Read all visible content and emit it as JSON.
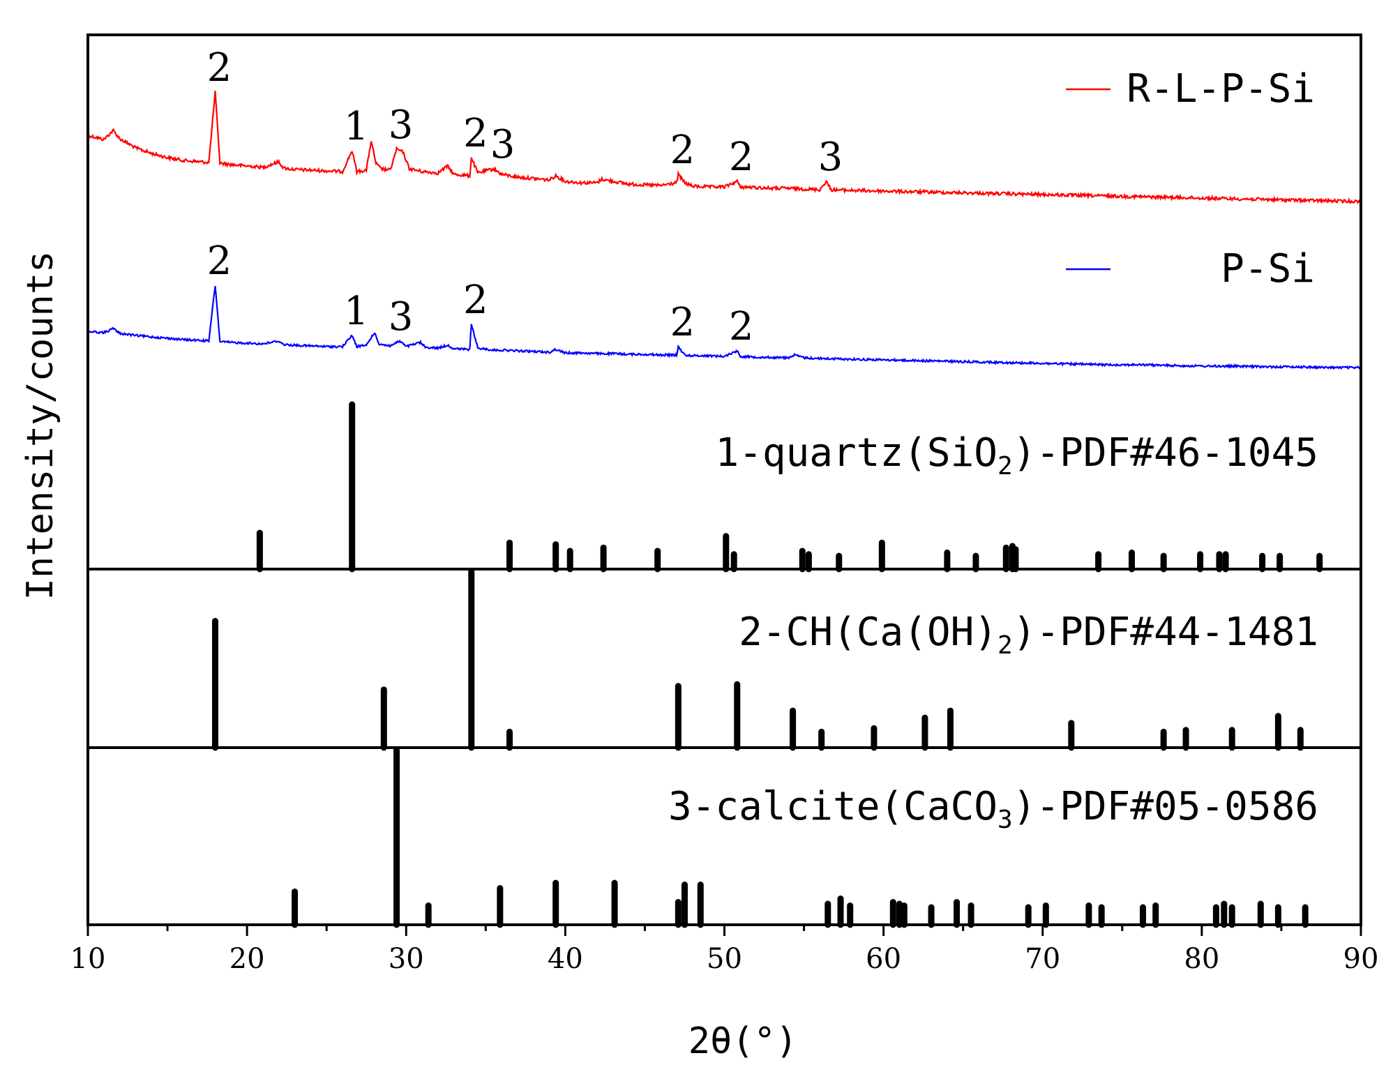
{
  "chart_data": {
    "type": "line",
    "xlabel": "2θ(°)",
    "ylabel": "Intensity/counts",
    "xlim": [
      10,
      90
    ],
    "xticks": [
      10,
      20,
      30,
      40,
      50,
      60,
      70,
      80,
      90
    ],
    "grid": false,
    "legend_position": "top-right",
    "series": [
      {
        "name": "R-L-P-Si",
        "color": "#ff0000",
        "points": [
          [
            10,
            118
          ],
          [
            11,
            112
          ],
          [
            11.6,
            125
          ],
          [
            12,
            113
          ],
          [
            13,
            100
          ],
          [
            14,
            92
          ],
          [
            15,
            86
          ],
          [
            16,
            82
          ],
          [
            17,
            80
          ],
          [
            17.6,
            79
          ],
          [
            18,
            180
          ],
          [
            18.3,
            78
          ],
          [
            19,
            76
          ],
          [
            20,
            74
          ],
          [
            21,
            72
          ],
          [
            22,
            80
          ],
          [
            22.3,
            71
          ],
          [
            23,
            69
          ],
          [
            24,
            68
          ],
          [
            25,
            67
          ],
          [
            26,
            66
          ],
          [
            26.6,
            96
          ],
          [
            26.9,
            66
          ],
          [
            27.5,
            68
          ],
          [
            27.8,
            110
          ],
          [
            28.1,
            78
          ],
          [
            28.4,
            70
          ],
          [
            29,
            68
          ],
          [
            29.4,
            98
          ],
          [
            29.8,
            94
          ],
          [
            30.2,
            70
          ],
          [
            31,
            66
          ],
          [
            32,
            64
          ],
          [
            32.6,
            74
          ],
          [
            33,
            62
          ],
          [
            34,
            60
          ],
          [
            34.1,
            86
          ],
          [
            34.5,
            64
          ],
          [
            35.5,
            70
          ],
          [
            36,
            62
          ],
          [
            37,
            58
          ],
          [
            38,
            56
          ],
          [
            39,
            54
          ],
          [
            39.4,
            60
          ],
          [
            40,
            52
          ],
          [
            41,
            50
          ],
          [
            42,
            50
          ],
          [
            42.3,
            55
          ],
          [
            43,
            52
          ],
          [
            44,
            48
          ],
          [
            45,
            47
          ],
          [
            46,
            46
          ],
          [
            47,
            50
          ],
          [
            47.1,
            62
          ],
          [
            47.5,
            50
          ],
          [
            48,
            45
          ],
          [
            49,
            44
          ],
          [
            50,
            44
          ],
          [
            50.8,
            52
          ],
          [
            51,
            44
          ],
          [
            52,
            43
          ],
          [
            53,
            42
          ],
          [
            54,
            42
          ],
          [
            55,
            41
          ],
          [
            56,
            40
          ],
          [
            56.4,
            52
          ],
          [
            56.7,
            40
          ],
          [
            58,
            39
          ],
          [
            60,
            38
          ],
          [
            62,
            37
          ],
          [
            64,
            36
          ],
          [
            66,
            35
          ],
          [
            68,
            34
          ],
          [
            70,
            33
          ],
          [
            72,
            32
          ],
          [
            74,
            31
          ],
          [
            76,
            30
          ],
          [
            78,
            29
          ],
          [
            80,
            28
          ],
          [
            82,
            27
          ],
          [
            84,
            26
          ],
          [
            86,
            25
          ],
          [
            88,
            24
          ],
          [
            90,
            23
          ]
        ],
        "peak_labels": [
          {
            "x": 18,
            "label": "2"
          },
          {
            "x": 26.6,
            "label": "1"
          },
          {
            "x": 29.4,
            "label": "3"
          },
          {
            "x": 34.1,
            "label": "2"
          },
          {
            "x": 35.8,
            "label": "3"
          },
          {
            "x": 47.1,
            "label": "2"
          },
          {
            "x": 50.8,
            "label": "2"
          },
          {
            "x": 56.4,
            "label": "3"
          }
        ]
      },
      {
        "name": "P-Si",
        "color": "#0000ff",
        "points": [
          [
            10,
            62
          ],
          [
            11,
            60
          ],
          [
            11.6,
            66
          ],
          [
            12,
            59
          ],
          [
            13,
            56
          ],
          [
            14,
            54
          ],
          [
            15,
            52
          ],
          [
            16,
            50
          ],
          [
            17,
            49
          ],
          [
            17.6,
            48
          ],
          [
            18,
            128
          ],
          [
            18.3,
            47
          ],
          [
            19,
            46
          ],
          [
            20,
            45
          ],
          [
            21,
            44
          ],
          [
            22,
            48
          ],
          [
            22.3,
            43
          ],
          [
            23,
            42
          ],
          [
            24,
            41
          ],
          [
            25,
            40
          ],
          [
            26,
            40
          ],
          [
            26.6,
            56
          ],
          [
            26.9,
            40
          ],
          [
            27.5,
            42
          ],
          [
            28,
            60
          ],
          [
            28.3,
            44
          ],
          [
            29,
            41
          ],
          [
            29.6,
            48
          ],
          [
            30,
            40
          ],
          [
            30.9,
            46
          ],
          [
            31.2,
            39
          ],
          [
            32,
            38
          ],
          [
            32.6,
            42
          ],
          [
            33,
            37
          ],
          [
            34,
            36
          ],
          [
            34.1,
            72
          ],
          [
            34.5,
            38
          ],
          [
            35.5,
            35
          ],
          [
            36,
            35
          ],
          [
            37,
            34
          ],
          [
            38,
            33
          ],
          [
            39,
            32
          ],
          [
            39.4,
            36
          ],
          [
            40,
            31
          ],
          [
            41,
            31
          ],
          [
            42,
            30
          ],
          [
            43,
            30
          ],
          [
            44,
            29
          ],
          [
            45,
            29
          ],
          [
            46,
            28
          ],
          [
            47,
            28
          ],
          [
            47.1,
            40
          ],
          [
            47.5,
            28
          ],
          [
            48,
            27
          ],
          [
            49,
            27
          ],
          [
            50,
            26
          ],
          [
            50.8,
            34
          ],
          [
            51,
            26
          ],
          [
            52,
            25
          ],
          [
            54,
            24
          ],
          [
            54.4,
            28
          ],
          [
            55,
            24
          ],
          [
            56,
            23
          ],
          [
            58,
            22
          ],
          [
            60,
            21
          ],
          [
            62,
            20
          ],
          [
            64,
            19
          ],
          [
            66,
            18
          ],
          [
            68,
            17
          ],
          [
            70,
            16
          ],
          [
            72,
            15
          ],
          [
            74,
            14
          ],
          [
            76,
            14
          ],
          [
            78,
            13
          ],
          [
            80,
            12
          ],
          [
            82,
            12
          ],
          [
            84,
            11
          ],
          [
            86,
            11
          ],
          [
            88,
            10
          ],
          [
            90,
            10
          ]
        ],
        "peak_labels": [
          {
            "x": 18,
            "label": "2"
          },
          {
            "x": 26.6,
            "label": "1"
          },
          {
            "x": 29.4,
            "label": "3"
          },
          {
            "x": 34.1,
            "label": "2"
          },
          {
            "x": 47.1,
            "label": "2"
          },
          {
            "x": 50.8,
            "label": "2"
          }
        ]
      }
    ],
    "reference_patterns": [
      {
        "label_prefix": "1-quartz(SiO",
        "label_sub": "2",
        "label_suffix": ")-PDF#46-1045",
        "peaks": [
          [
            20.8,
            22
          ],
          [
            26.6,
            100
          ],
          [
            36.5,
            16
          ],
          [
            39.4,
            15
          ],
          [
            40.3,
            11
          ],
          [
            42.4,
            13
          ],
          [
            45.8,
            11
          ],
          [
            50.1,
            20
          ],
          [
            50.6,
            9
          ],
          [
            54.9,
            11
          ],
          [
            55.3,
            9
          ],
          [
            57.2,
            8
          ],
          [
            59.9,
            16
          ],
          [
            64.0,
            10
          ],
          [
            65.8,
            8
          ],
          [
            67.7,
            13
          ],
          [
            68.1,
            14
          ],
          [
            68.3,
            12
          ],
          [
            73.5,
            9
          ],
          [
            75.6,
            10
          ],
          [
            77.6,
            8
          ],
          [
            79.9,
            9
          ],
          [
            81.1,
            9
          ],
          [
            81.5,
            9
          ],
          [
            83.8,
            8
          ],
          [
            84.9,
            8
          ],
          [
            87.4,
            8
          ]
        ]
      },
      {
        "label_prefix": "2-CH(Ca(OH)",
        "label_sub": "2",
        "label_suffix": ")-PDF#44-1481",
        "peaks": [
          [
            18.0,
            72
          ],
          [
            28.6,
            33
          ],
          [
            34.1,
            100
          ],
          [
            36.5,
            9
          ],
          [
            47.1,
            35
          ],
          [
            50.8,
            36
          ],
          [
            54.3,
            21
          ],
          [
            56.1,
            9
          ],
          [
            59.4,
            11
          ],
          [
            62.6,
            17
          ],
          [
            64.2,
            21
          ],
          [
            71.8,
            14
          ],
          [
            77.6,
            9
          ],
          [
            79.0,
            10
          ],
          [
            81.9,
            10
          ],
          [
            84.8,
            18
          ],
          [
            86.2,
            10
          ]
        ]
      },
      {
        "label_prefix": "3-calcite(CaCO",
        "label_sub": "3",
        "label_suffix": ")-PDF#05-0586",
        "peaks": [
          [
            23.0,
            19
          ],
          [
            29.4,
            100
          ],
          [
            31.4,
            11
          ],
          [
            35.9,
            21
          ],
          [
            39.4,
            24
          ],
          [
            43.1,
            24
          ],
          [
            47.1,
            13
          ],
          [
            47.5,
            23
          ],
          [
            48.5,
            23
          ],
          [
            56.5,
            12
          ],
          [
            57.3,
            15
          ],
          [
            57.9,
            11
          ],
          [
            60.6,
            13
          ],
          [
            61.0,
            12
          ],
          [
            61.3,
            11
          ],
          [
            63.0,
            10
          ],
          [
            64.6,
            13
          ],
          [
            65.5,
            11
          ],
          [
            69.1,
            10
          ],
          [
            70.2,
            11
          ],
          [
            72.9,
            11
          ],
          [
            73.7,
            10
          ],
          [
            76.3,
            10
          ],
          [
            77.1,
            11
          ],
          [
            80.9,
            10
          ],
          [
            81.4,
            12
          ],
          [
            81.9,
            10
          ],
          [
            83.7,
            12
          ],
          [
            84.8,
            10
          ],
          [
            86.5,
            10
          ]
        ]
      }
    ]
  }
}
